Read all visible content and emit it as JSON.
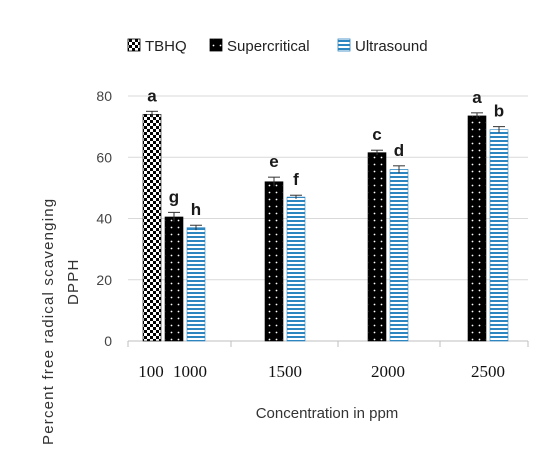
{
  "chart_data": {
    "type": "bar",
    "xlabel": "Concentration in ppm",
    "ylabel_lines": [
      "Percent free radical scavenging",
      "DPPH"
    ],
    "ylim": [
      0,
      80
    ],
    "yticks": [
      0,
      20,
      40,
      60,
      80
    ],
    "grid": true,
    "legend_position": "top",
    "series": [
      {
        "name": "TBHQ",
        "pattern": "checker",
        "color": "#000000",
        "bars": [
          {
            "category": "100",
            "value": 74,
            "error": 1.0,
            "label": "a"
          }
        ]
      },
      {
        "name": "Supercritical",
        "pattern": "dots",
        "color": "#000000",
        "bars": [
          {
            "category": "1000",
            "value": 40.5,
            "error": 1.5,
            "label": "g"
          },
          {
            "category": "1500",
            "value": 52,
            "error": 1.5,
            "label": "e"
          },
          {
            "category": "2000",
            "value": 61.5,
            "error": 0.8,
            "label": "c"
          },
          {
            "category": "2500",
            "value": 73.5,
            "error": 1.0,
            "label": "a"
          }
        ]
      },
      {
        "name": "Ultrasound",
        "pattern": "stripes",
        "color": "#2e86c1",
        "bars": [
          {
            "category": "1000",
            "value": 37,
            "error": 0.8,
            "label": "h"
          },
          {
            "category": "1500",
            "value": 47,
            "error": 0.6,
            "label": "f"
          },
          {
            "category": "2000",
            "value": 56,
            "error": 1.2,
            "label": "d"
          },
          {
            "category": "2500",
            "value": 69,
            "error": 1.0,
            "label": "b"
          }
        ]
      }
    ],
    "groups": [
      {
        "categories": [
          "100",
          "1000"
        ],
        "series": [
          0,
          1,
          2
        ]
      },
      {
        "categories": [
          "1500"
        ],
        "series": [
          1,
          2
        ]
      },
      {
        "categories": [
          "2000"
        ],
        "series": [
          1,
          2
        ]
      },
      {
        "categories": [
          "2500"
        ],
        "series": [
          1,
          2
        ]
      }
    ]
  }
}
